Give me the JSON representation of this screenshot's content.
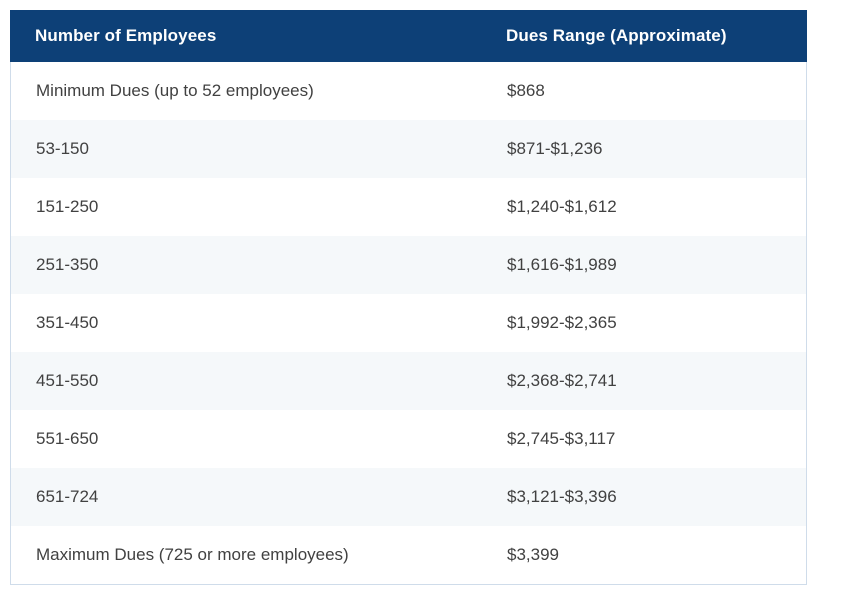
{
  "chart_data": {
    "type": "table",
    "columns": [
      "Number of Employees",
      "Dues Range (Approximate)"
    ],
    "rows": [
      [
        "Minimum Dues (up to 52 employees)",
        "$868"
      ],
      [
        "53-150",
        "$871-$1,236"
      ],
      [
        "151-250",
        "$1,240-$1,612"
      ],
      [
        "251-350",
        "$1,616-$1,989"
      ],
      [
        "351-450",
        "$1,992-$2,365"
      ],
      [
        "451-550",
        "$2,368-$2,741"
      ],
      [
        "551-650",
        "$2,745-$3,117"
      ],
      [
        "651-724",
        "$3,121-$3,396"
      ],
      [
        "Maximum Dues (725 or more employees)",
        "$3,399"
      ]
    ],
    "layout": {
      "header_position": "top",
      "zebra_striping": true,
      "alt_rows": [
        1,
        3,
        5,
        7
      ]
    }
  },
  "colors": {
    "header_bg": "#0d4077",
    "header_text": "#ffffff",
    "row_bg": "#ffffff",
    "row_alt_bg": "#f5f8fa",
    "body_text": "#414141",
    "border": "#cfdcea"
  }
}
